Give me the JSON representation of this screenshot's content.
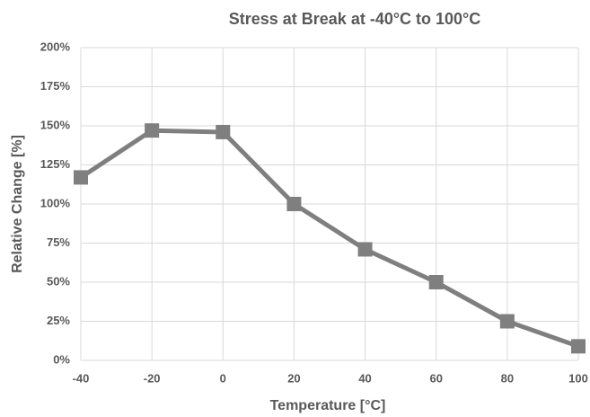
{
  "chart_data": {
    "type": "line",
    "title": "Stress at Break at -40°C to 100°C",
    "x_label": "Temperature [°C]",
    "y_label": "Relative Change [%]",
    "x": [
      -40,
      -20,
      0,
      20,
      40,
      60,
      80,
      100
    ],
    "values": [
      117,
      147,
      146,
      100,
      71,
      50,
      25,
      9
    ],
    "color": "#7f7f7f",
    "xlim": [
      -40,
      100
    ],
    "xticks": [
      -40,
      -20,
      0,
      20,
      40,
      60,
      80,
      100
    ],
    "ylim": [
      0,
      200
    ],
    "yticks": [
      {
        "value": 0,
        "label": "0%"
      },
      {
        "value": 25,
        "label": "25%"
      },
      {
        "value": 50,
        "label": "50%"
      },
      {
        "value": 75,
        "label": "75%"
      },
      {
        "value": 100,
        "label": "100%"
      },
      {
        "value": 125,
        "label": "125%"
      },
      {
        "value": 150,
        "label": "150%"
      },
      {
        "value": 175,
        "label": "175%"
      },
      {
        "value": 200,
        "label": "200%"
      }
    ],
    "grid": true
  }
}
